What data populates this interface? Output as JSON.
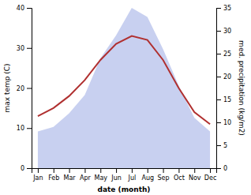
{
  "chart_data": {
    "type": "line",
    "categories": [
      "Jan",
      "Feb",
      "Mar",
      "Apr",
      "May",
      "Jun",
      "Jul",
      "Aug",
      "Sep",
      "Oct",
      "Nov",
      "Dec"
    ],
    "series": [
      {
        "type": "area",
        "color": "#c8d0f0",
        "axis": "y2",
        "values": [
          8,
          9,
          12,
          16,
          24,
          29,
          35,
          33,
          26,
          18,
          11,
          8
        ]
      },
      {
        "type": "line",
        "color": "#b03030",
        "values": [
          13,
          15,
          18,
          22,
          27,
          31,
          33,
          32,
          27,
          20,
          14,
          11
        ]
      }
    ],
    "xlabel": "date (month)",
    "ylabel": "max temp (C)",
    "y2label": "med. precipitation (kg/m2)",
    "ylim": [
      0,
      40
    ],
    "yticks": [
      0,
      10,
      20,
      30,
      40
    ],
    "y2lim": [
      0,
      35
    ],
    "y2ticks": [
      0,
      5,
      10,
      15,
      20,
      25,
      30,
      35
    ],
    "grid": false
  }
}
